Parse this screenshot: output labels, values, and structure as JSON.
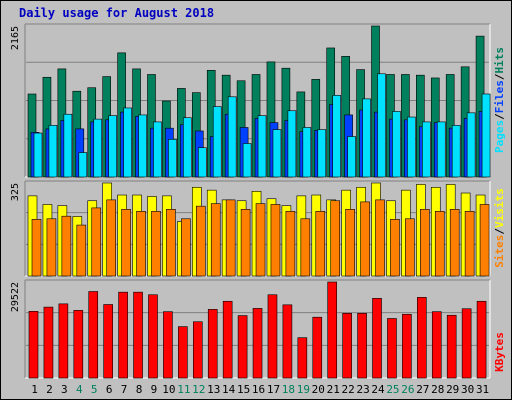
{
  "title": "Daily usage for August 2018",
  "colors": {
    "background": "#c0c0c0",
    "hits": "#00805c",
    "files": "#0040ff",
    "pages": "#00e0ff",
    "visits": "#ffff00",
    "sites": "#ff8000",
    "kbytes": "#ff0000",
    "weekday_label": "#000000",
    "weekend_label": "#00805c"
  },
  "right_labels": {
    "top": [
      "Pages",
      "/",
      "Files",
      "/",
      "Hits"
    ],
    "middle": [
      "Sites",
      "/",
      "Visits"
    ],
    "bottom": [
      "KBytes"
    ]
  },
  "chart_data": [
    {
      "type": "bar",
      "panel": "hits-files-pages",
      "ymax_label": "2165",
      "ylim": [
        0,
        2165
      ],
      "categories": [
        "1",
        "2",
        "3",
        "4",
        "5",
        "6",
        "7",
        "8",
        "9",
        "10",
        "11",
        "12",
        "13",
        "14",
        "15",
        "16",
        "17",
        "18",
        "19",
        "20",
        "21",
        "22",
        "23",
        "24",
        "25",
        "26",
        "27",
        "28",
        "29",
        "30",
        "31"
      ],
      "series": [
        {
          "name": "Hits",
          "values": [
            1190,
            1430,
            1550,
            1230,
            1280,
            1440,
            1780,
            1550,
            1470,
            1090,
            1270,
            1210,
            1530,
            1460,
            1380,
            1470,
            1650,
            1560,
            1220,
            1400,
            1850,
            1730,
            1540,
            2165,
            1470,
            1470,
            1460,
            1420,
            1470,
            1580,
            2020
          ]
        },
        {
          "name": "Files",
          "values": [
            640,
            690,
            810,
            690,
            790,
            820,
            930,
            870,
            700,
            700,
            750,
            660,
            580,
            900,
            710,
            840,
            780,
            810,
            650,
            670,
            1040,
            890,
            960,
            930,
            830,
            820,
            720,
            780,
            700,
            840,
            940
          ]
        },
        {
          "name": "Pages",
          "values": [
            630,
            740,
            900,
            350,
            830,
            880,
            990,
            890,
            790,
            540,
            850,
            420,
            1010,
            1150,
            480,
            880,
            680,
            950,
            710,
            680,
            1170,
            580,
            1120,
            1480,
            940,
            860,
            790,
            790,
            740,
            920,
            1190
          ]
        }
      ]
    },
    {
      "type": "bar",
      "panel": "visits-sites",
      "ymax_label": "325",
      "ylim": [
        0,
        325
      ],
      "categories": [
        "1",
        "2",
        "3",
        "4",
        "5",
        "6",
        "7",
        "8",
        "9",
        "10",
        "11",
        "12",
        "13",
        "14",
        "15",
        "16",
        "17",
        "18",
        "19",
        "20",
        "21",
        "22",
        "23",
        "24",
        "25",
        "26",
        "27",
        "28",
        "29",
        "30",
        "31"
      ],
      "series": [
        {
          "name": "Visits",
          "values": [
            280,
            250,
            246,
            208,
            263,
            325,
            283,
            283,
            278,
            280,
            190,
            310,
            300,
            266,
            263,
            296,
            270,
            246,
            280,
            283,
            266,
            300,
            310,
            325,
            263,
            300,
            320,
            310,
            320,
            290,
            283
          ]
        },
        {
          "name": "Sites",
          "values": [
            198,
            200,
            209,
            178,
            238,
            266,
            233,
            226,
            226,
            233,
            200,
            244,
            253,
            266,
            233,
            253,
            250,
            226,
            200,
            226,
            263,
            233,
            259,
            266,
            198,
            200,
            233,
            226,
            233,
            226,
            250
          ]
        }
      ]
    },
    {
      "type": "bar",
      "panel": "kbytes",
      "ymax_label": "29522",
      "ylim": [
        0,
        29522
      ],
      "categories": [
        "1",
        "2",
        "3",
        "4",
        "5",
        "6",
        "7",
        "8",
        "9",
        "10",
        "11",
        "12",
        "13",
        "14",
        "15",
        "16",
        "17",
        "18",
        "19",
        "20",
        "21",
        "22",
        "23",
        "24",
        "25",
        "26",
        "27",
        "28",
        "29",
        "30",
        "31"
      ],
      "series": [
        {
          "name": "KBytes",
          "values": [
            20500,
            21800,
            22800,
            20800,
            26600,
            22600,
            26400,
            26400,
            25600,
            20400,
            15800,
            17300,
            21100,
            23600,
            19200,
            21400,
            25600,
            22500,
            12400,
            18700,
            29522,
            19900,
            19900,
            24500,
            18300,
            19600,
            24800,
            20400,
            19300,
            21300,
            23600
          ]
        }
      ]
    }
  ]
}
